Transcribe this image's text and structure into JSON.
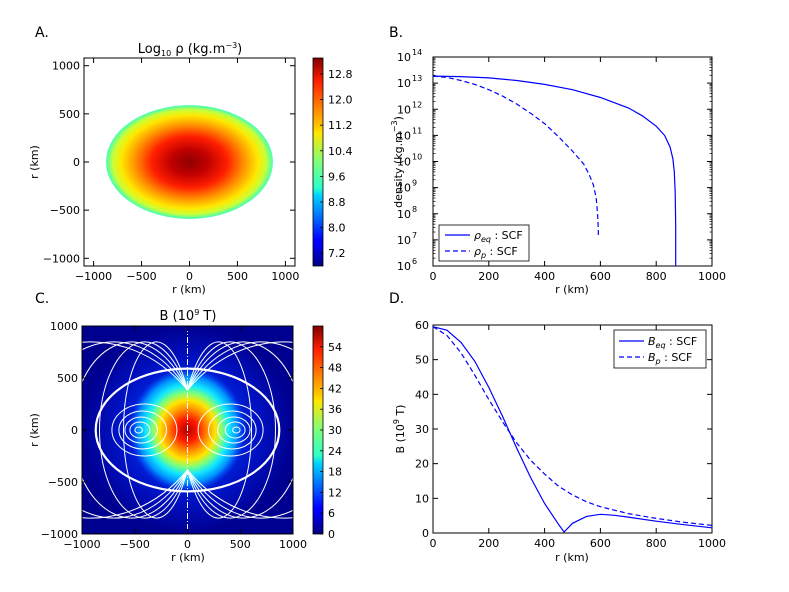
{
  "figure": {
    "panels": [
      "A.",
      "B.",
      "C.",
      "D."
    ]
  },
  "chart_data": [
    {
      "id": "A",
      "type": "heatmap",
      "title": "Log10 ρ (kg.m−3)",
      "xlabel": "r (km)",
      "ylabel": "r (km)",
      "xlim": [
        -1100,
        1100
      ],
      "ylim": [
        -1080,
        1080
      ],
      "xticks": [
        "−1000",
        "−500",
        "0",
        "500",
        "1000"
      ],
      "xtick_values": [
        -1000,
        -500,
        0,
        500,
        1000
      ],
      "yticks": [
        "1000",
        "500",
        "0",
        "−500",
        "−1000"
      ],
      "ytick_values": [
        1000,
        500,
        0,
        -500,
        -1000
      ],
      "colorbar_ticks": [
        "12.8",
        "12.0",
        "11.2",
        "10.4",
        "9.6",
        "8.8",
        "8.0",
        "7.2"
      ],
      "colorbar_tick_values": [
        12.8,
        12.0,
        11.2,
        10.4,
        9.6,
        8.8,
        8.0,
        7.2
      ],
      "colorbar_range": [
        6.8,
        13.3
      ],
      "shape": {
        "equatorial_radius_km": 870,
        "polar_radius_km": 590,
        "center_value": 13.25,
        "edge_value": 9.4
      },
      "colormap": "jet"
    },
    {
      "id": "B",
      "type": "line",
      "xlabel": "r (km)",
      "ylabel": "density (kg.m−3)",
      "xlim": [
        0,
        1000
      ],
      "ylim_log10": [
        6,
        14
      ],
      "log_y": true,
      "xticks": [
        "0",
        "200",
        "400",
        "600",
        "800",
        "1000"
      ],
      "xtick_values": [
        0,
        200,
        400,
        600,
        800,
        1000
      ],
      "yticks_exp": [
        "14",
        "13",
        "12",
        "11",
        "10",
        "9",
        "8",
        "7",
        "6"
      ],
      "ytick_values_log10": [
        14,
        13,
        12,
        11,
        10,
        9,
        8,
        7,
        6
      ],
      "legend_position": "lower-left",
      "color": "#0000ff",
      "series": [
        {
          "name": "ρeq : SCF",
          "legend_sub": "eq",
          "dash": "solid",
          "x": [
            0,
            100,
            200,
            300,
            400,
            500,
            600,
            700,
            750,
            800,
            830,
            850,
            860,
            865,
            868,
            870,
            870
          ],
          "y_log10": [
            13.27,
            13.25,
            13.2,
            13.1,
            12.95,
            12.75,
            12.45,
            12.05,
            11.75,
            11.35,
            11.0,
            10.55,
            10.1,
            9.6,
            8.8,
            7.5,
            6.0
          ]
        },
        {
          "name": "ρp : SCF",
          "legend_sub": "p",
          "dash": "dashed",
          "x": [
            0,
            50,
            100,
            150,
            200,
            250,
            300,
            350,
            400,
            450,
            500,
            540,
            560,
            575,
            585,
            590,
            592,
            593
          ],
          "y_log10": [
            13.27,
            13.22,
            13.1,
            12.95,
            12.75,
            12.5,
            12.2,
            11.85,
            11.45,
            10.95,
            10.4,
            9.9,
            9.5,
            9.1,
            8.6,
            8.0,
            7.5,
            7.1
          ]
        }
      ]
    },
    {
      "id": "C",
      "type": "heatmap",
      "title": "B (10^9 T)",
      "xlabel": "r (km)",
      "ylabel": "r (km)",
      "xlim": [
        -1000,
        1000
      ],
      "ylim": [
        -1000,
        1000
      ],
      "xticks": [
        "−1000",
        "−500",
        "0",
        "500",
        "1000"
      ],
      "xtick_values": [
        -1000,
        -500,
        0,
        500,
        1000
      ],
      "yticks": [
        "1000",
        "500",
        "0",
        "−500",
        "−1000"
      ],
      "ytick_values": [
        1000,
        500,
        0,
        -500,
        -1000
      ],
      "colorbar_ticks": [
        "54",
        "48",
        "42",
        "36",
        "30",
        "24",
        "18",
        "12",
        "6",
        "0"
      ],
      "colorbar_tick_values": [
        54,
        48,
        42,
        36,
        30,
        24,
        18,
        12,
        6,
        0
      ],
      "colorbar_range": [
        0,
        60
      ],
      "star_outline": {
        "equatorial_radius_km": 870,
        "polar_radius_km": 590
      },
      "field_loop_centers_km": [
        -470,
        470
      ],
      "colormap": "jet"
    },
    {
      "id": "D",
      "type": "line",
      "xlabel": "r (km)",
      "ylabel": "B (10^9 T)",
      "xlim": [
        0,
        1000
      ],
      "ylim": [
        0,
        60
      ],
      "xticks": [
        "0",
        "200",
        "400",
        "600",
        "800",
        "1000"
      ],
      "xtick_values": [
        0,
        200,
        400,
        600,
        800,
        1000
      ],
      "yticks": [
        "60",
        "50",
        "40",
        "30",
        "20",
        "10",
        "0"
      ],
      "ytick_values": [
        60,
        50,
        40,
        30,
        20,
        10,
        0
      ],
      "legend_position": "top-right",
      "color": "#0000ff",
      "series": [
        {
          "name": "Beq : SCF",
          "legend_sub": "eq",
          "dash": "solid",
          "x": [
            0,
            50,
            100,
            150,
            200,
            250,
            300,
            350,
            400,
            450,
            470,
            500,
            550,
            600,
            650,
            700,
            800,
            900,
            1000
          ],
          "y": [
            59.5,
            58.5,
            55,
            49.5,
            42,
            33.5,
            24.5,
            16,
            8.5,
            2.5,
            0.3,
            2.8,
            4.8,
            5.4,
            5.1,
            4.6,
            3.4,
            2.4,
            1.5
          ]
        },
        {
          "name": "Bp : SCF",
          "legend_sub": "p",
          "dash": "dashed",
          "x": [
            0,
            50,
            100,
            150,
            200,
            250,
            300,
            350,
            400,
            450,
            500,
            550,
            600,
            700,
            800,
            900,
            1000
          ],
          "y": [
            59.5,
            57,
            52,
            45.5,
            38.5,
            32,
            26,
            21,
            17,
            13.5,
            11,
            9,
            7.6,
            5.6,
            4.2,
            3.1,
            2.2
          ]
        }
      ]
    }
  ]
}
